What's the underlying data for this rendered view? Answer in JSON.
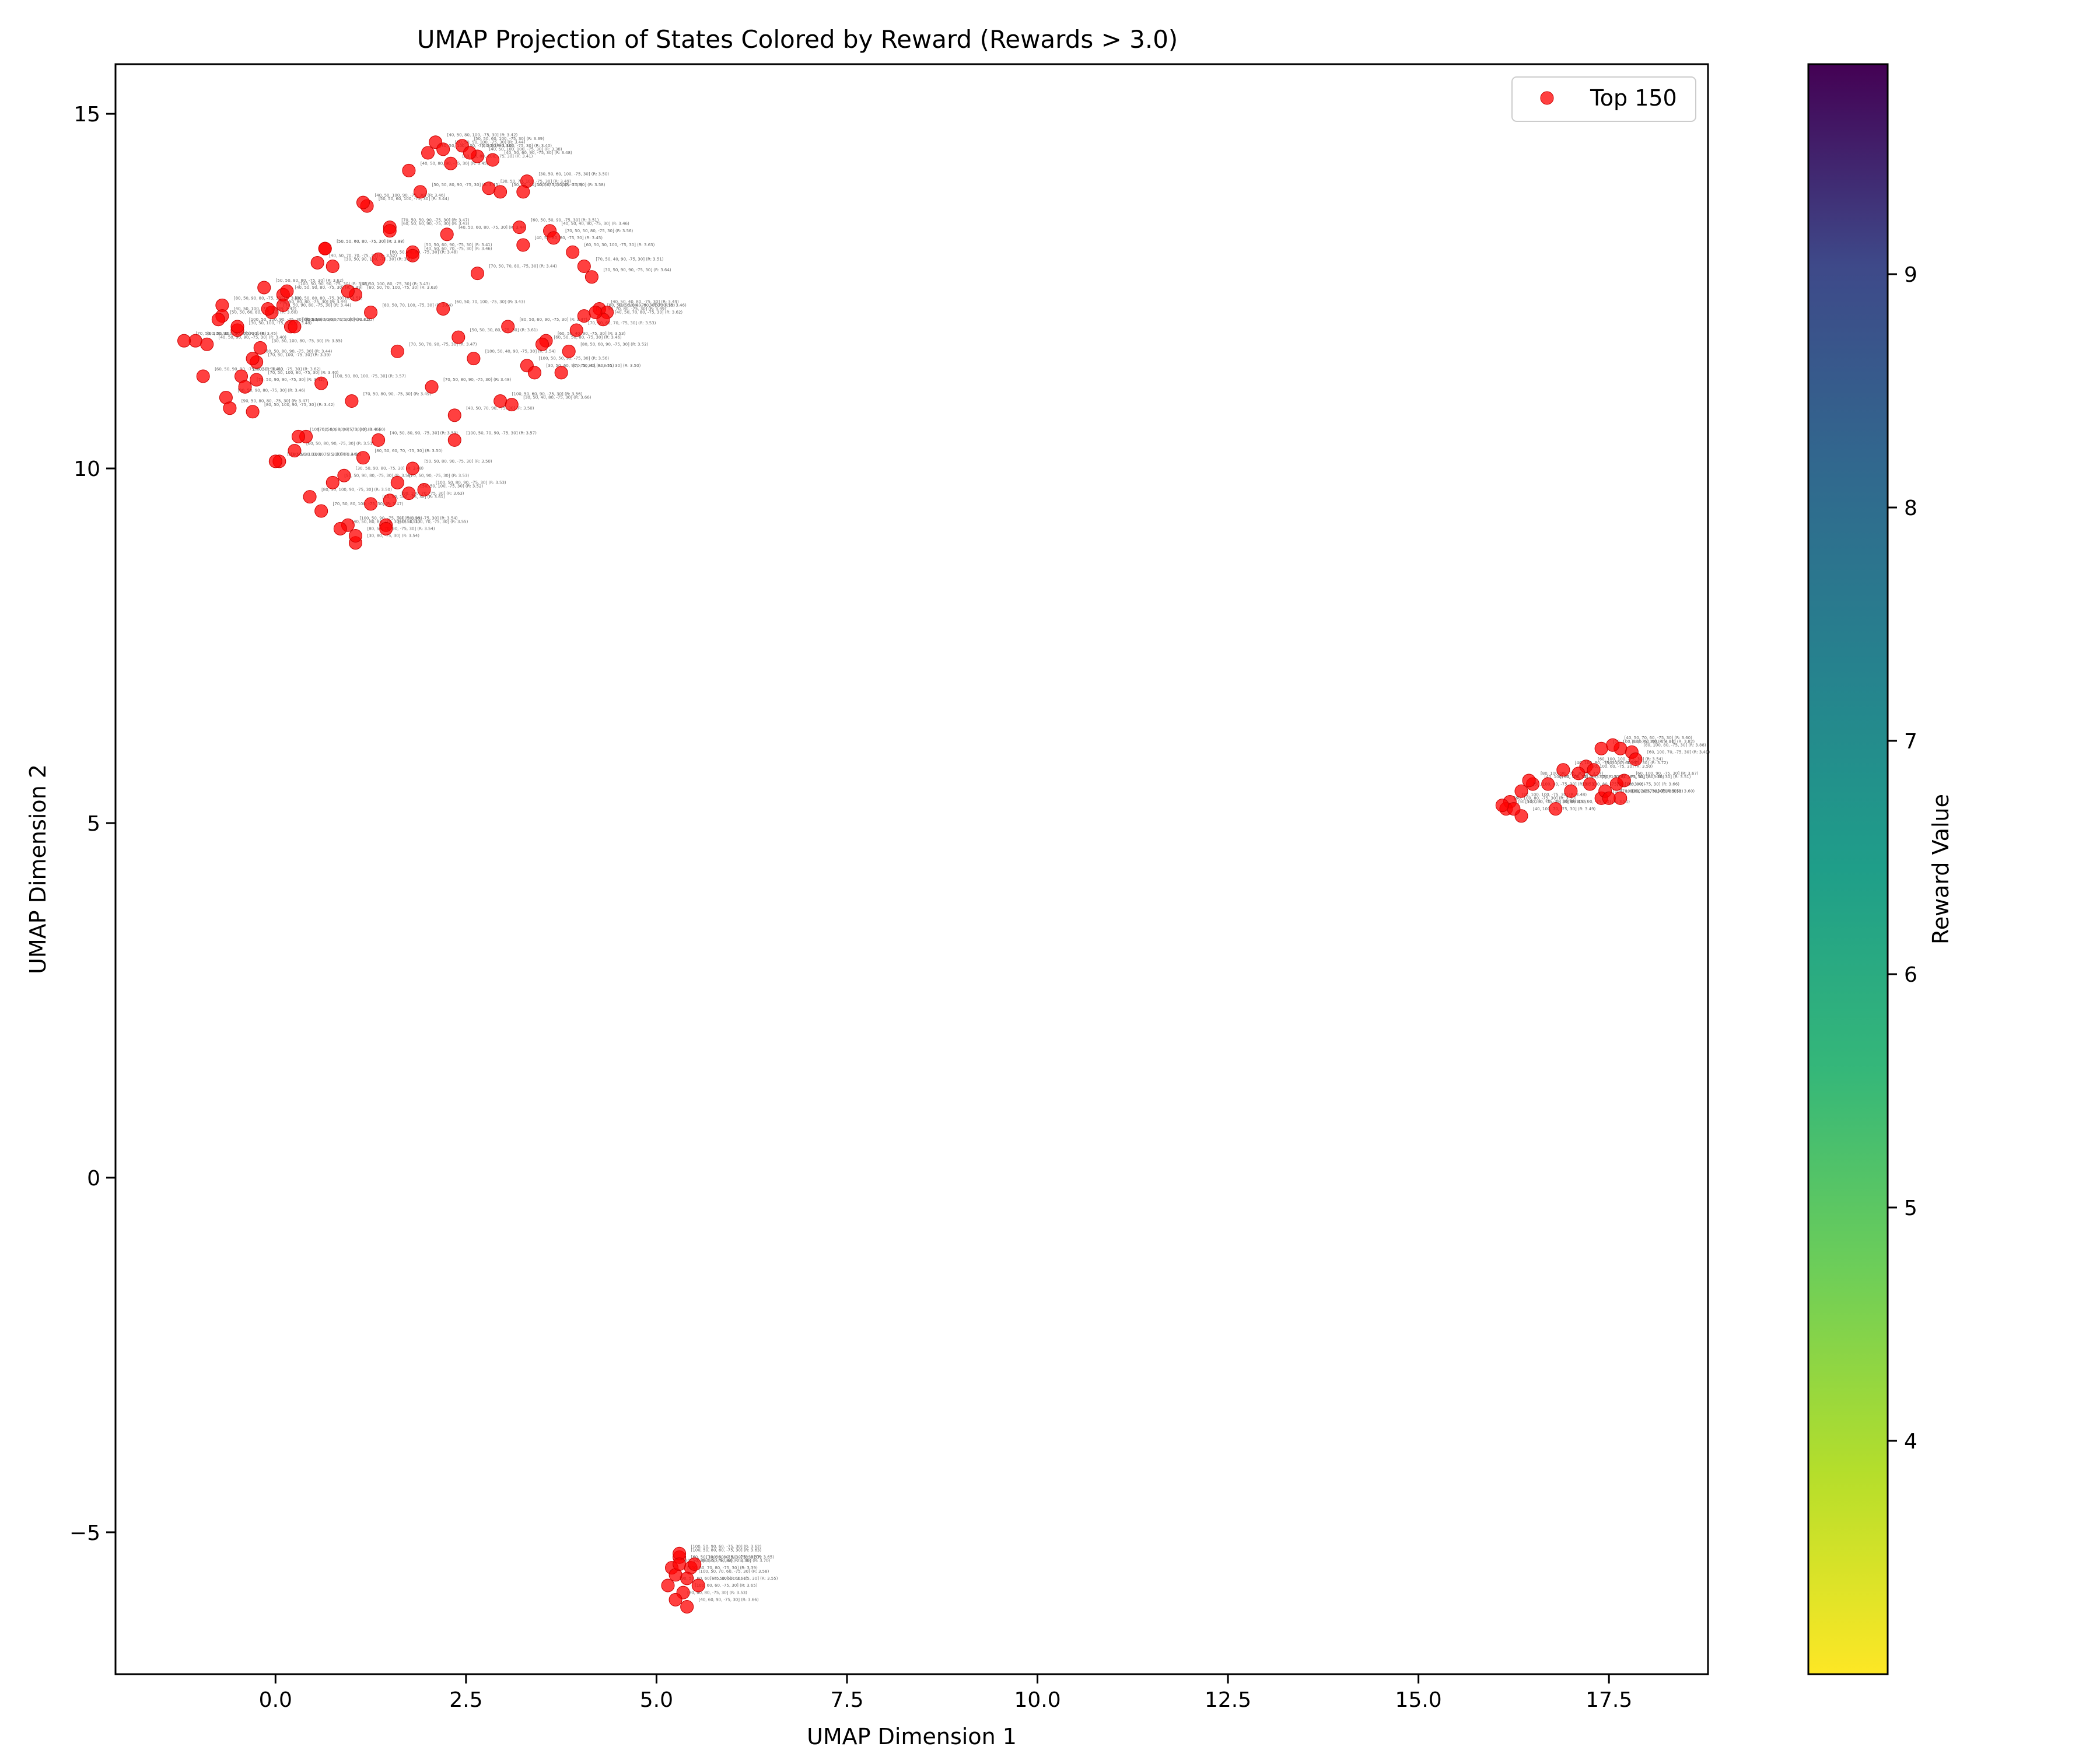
{
  "chart_data": {
    "type": "scatter",
    "title": "UMAP Projection of States Colored by Reward (Rewards > 3.0)",
    "xlabel": "UMAP Dimension 1",
    "ylabel": "UMAP Dimension 2",
    "xlim": [
      -2.1,
      18.8
    ],
    "ylim": [
      -7.0,
      15.7
    ],
    "xticks": [
      0.0,
      2.5,
      5.0,
      7.5,
      10.0,
      12.5,
      15.0,
      17.5
    ],
    "xtick_labels": [
      "0.0",
      "2.5",
      "5.0",
      "7.5",
      "10.0",
      "12.5",
      "15.0",
      "17.5"
    ],
    "yticks": [
      -5,
      0,
      5,
      10,
      15
    ],
    "ytick_labels": [
      "−5",
      "0",
      "5",
      "10",
      "15"
    ],
    "grid": false,
    "legend": {
      "position": "top-right",
      "entries": [
        "Top 150"
      ]
    },
    "colorbar": {
      "label": "Reward Value",
      "range": [
        3.0,
        9.9
      ],
      "ticks": [
        4,
        5,
        6,
        7,
        8,
        9
      ],
      "tick_labels": [
        "4",
        "5",
        "6",
        "7",
        "8",
        "9"
      ],
      "colormap": "viridis_r"
    },
    "colors": {
      "points": "#ff0000",
      "point_edge": "#cc0000",
      "annotation_text": "#777777"
    },
    "series": [
      {
        "name": "Top 150",
        "x": [
          2.1,
          2.45,
          2.85,
          1.75,
          2.3,
          2.95,
          3.3,
          1.9,
          2.65,
          1.2,
          1.5,
          3.6,
          2.25,
          3.25,
          0.65,
          1.8,
          0.75,
          3.9,
          4.15,
          4.05,
          2.65,
          -0.15,
          0.1,
          -0.7,
          1.05,
          -0.5,
          -1.05,
          4.25,
          4.35,
          4.3,
          4.05,
          3.05,
          2.2,
          1.6,
          3.55,
          3.85,
          2.6,
          -0.25,
          0.2,
          -0.7,
          -0.9,
          -1.2,
          3.3,
          2.05,
          3.4,
          1.0,
          2.95,
          -0.45,
          -0.65,
          2.35,
          0.4,
          1.35,
          2.35,
          0.25,
          0.05,
          1.8,
          0.9,
          1.6,
          0.75,
          1.95,
          0.45,
          1.25,
          1.75,
          0.6,
          0.95,
          1.45,
          1.05,
          5.3,
          5.45,
          5.2,
          5.55,
          5.35,
          5.25,
          5.4,
          5.3,
          17.4,
          17.65,
          17.8,
          17.2,
          16.9,
          17.6,
          17.7,
          17.1,
          16.5,
          16.35,
          16.2,
          16.8,
          17.4,
          17.65,
          16.15,
          16.35,
          2.55,
          2.0,
          2.2,
          3.25,
          3.2,
          3.65,
          2.8,
          -0.05,
          1.15,
          1.5,
          0.1,
          -0.5,
          0.65,
          -0.3,
          -0.95,
          -0.2,
          -0.4,
          0.95,
          1.25,
          1.8,
          1.35,
          0.0,
          0.6,
          0.55,
          0.25,
          0.3,
          1.15,
          1.45,
          3.95,
          2.4,
          3.5,
          4.2,
          3.1,
          3.75,
          -0.75,
          0.15,
          -0.1,
          -0.25,
          -0.6,
          -0.3,
          5.25,
          5.5,
          5.4,
          5.15,
          5.3,
          17.55,
          17.3,
          17.45,
          16.7,
          16.25,
          17.85,
          17.25,
          16.45,
          16.1,
          17.0,
          17.5,
          1.5,
          1.05,
          0.85
        ],
        "y": [
          14.6,
          14.55,
          14.35,
          14.2,
          14.3,
          13.9,
          14.05,
          13.9,
          14.4,
          13.7,
          13.4,
          13.35,
          13.3,
          13.15,
          13.1,
          13.05,
          12.85,
          13.05,
          12.7,
          12.85,
          12.75,
          12.55,
          12.45,
          12.3,
          12.45,
          11.95,
          11.8,
          12.25,
          12.2,
          12.1,
          12.15,
          12.0,
          12.25,
          11.65,
          11.8,
          11.65,
          11.55,
          11.5,
          12.0,
          12.15,
          11.75,
          11.8,
          11.45,
          11.15,
          11.35,
          10.95,
          10.95,
          11.3,
          11.0,
          10.75,
          10.45,
          10.4,
          10.4,
          10.25,
          10.1,
          10.0,
          9.9,
          9.8,
          9.8,
          9.7,
          9.6,
          9.5,
          9.65,
          9.4,
          9.2,
          9.2,
          8.95,
          -5.35,
          -5.5,
          -5.5,
          -5.75,
          -5.85,
          -5.95,
          -6.05,
          -5.3,
          6.05,
          6.05,
          6.0,
          5.8,
          5.75,
          5.55,
          5.6,
          5.7,
          5.55,
          5.45,
          5.3,
          5.2,
          5.35,
          5.35,
          5.2,
          5.1,
          14.45,
          14.45,
          14.5,
          13.9,
          13.4,
          13.25,
          13.95,
          12.2,
          13.75,
          13.35,
          12.3,
          12.0,
          13.1,
          11.55,
          11.3,
          11.7,
          11.15,
          12.5,
          12.2,
          13.0,
          12.95,
          10.1,
          11.2,
          12.9,
          12.0,
          10.45,
          10.15,
          9.15,
          11.95,
          11.85,
          11.75,
          12.2,
          10.9,
          11.35,
          12.1,
          12.5,
          12.25,
          11.25,
          10.85,
          10.8,
          -5.6,
          -5.45,
          -5.65,
          -5.75,
          -5.45,
          6.1,
          5.75,
          5.45,
          5.55,
          5.2,
          5.9,
          5.55,
          5.6,
          5.25,
          5.45,
          5.35,
          9.55,
          9.05,
          9.15
        ],
        "labels": [
          "[40, 50, 80, 100, -75, 30] (R: 3.42)",
          "[50, 50, 60, 100, -75, 30] (R: 3.39)",
          "[40, 50, 60, 90, -75, 30] (R: 3.48)",
          "[40, 50, 80, 90, -75, 30] (R: 3.45)",
          "[50, 50, 80, 100, -75, 30] (R: 3.41)",
          "[50, 50, 40, 100, -75, 30] (R: 3.53)",
          "[30, 50, 60, 100, -75, 30] (R: 3.50)",
          "[50, 50, 80, 90, -75, 30] (R: 3.45)",
          "[40, 50, 100, 100, -75, 30] (R: 3.38)",
          "[50, 50, 60, 100, -75, 30] (R: 3.44)",
          "[70, 50, 50, 90, -75, 30] (R: 3.47)",
          "[40, 50, 40, 90, -75, 30] (R: 3.46)",
          "[40, 50, 60, 80, -75, 30] (R: 3.44)",
          "[40, 50, 80, 80, -75, 30] (R: 3.45)",
          "[50, 50, 60, 80, -75, 30] (R: 3.38)",
          "[50, 50, 60, 90, -75, 30] (R: 3.41)",
          "[30, 50, 90, 100, -75, 30] (R: 3.52)",
          "[60, 50, 30, 100, -75, 30] (R: 3.63)",
          "[30, 50, 90, 90, -75, 30] (R: 3.64)",
          "[70, 50, 40, 90, -75, 30] (R: 3.51)",
          "[70, 50, 70, 80, -75, 30] (R: 3.44)",
          "[50, 50, 80, 80, -75, 30] (R: 3.62)",
          "[40, 50, 90, 80, -75, 30] (R: 3.49)",
          "[80, 50, 90, 80, -75, 30] (R: 3.48)",
          "[60, 50, 70, 100, -75, 30] (R: 3.63)",
          "[30, 50, 100, -75, 30] (R: 3.48)",
          "[60, 50, 100, 90, -75, 30] (R: 3.45)",
          "[40, 50, 40, 80, -75, 30] (R: 3.49)",
          "[80, 50, 40, 80, -75, 30] (R: 3.46)",
          "[40, 50, 70, 80, -75, 30] (R: 3.62)",
          "[100, 50, 70, 80, -75, 30] (R: 3.49)",
          "[80, 50, 60, 90, -75, 30] (R: 3.47)",
          "[60, 50, 70, 100, -75, 30] (R: 3.43)",
          "[70, 50, 70, 90, -75, 30] (R: 3.47)",
          "[60, 50, 40, 90, -75, 30] (R: 3.53)",
          "[80, 50, 60, 90, -75, 30] (R: 3.52)",
          "[100, 50, 40, 90, -75, 30] (R: 3.54)",
          "[70, 50, 100, -75, 30] (R: 3.39)",
          "[60, 50, 80, 90, -75, 30] (R: 3.41)",
          "[40, 50, 100, -75, 30] (R: 3.42)",
          "[40, 50, 90, 90, -75, 30] (R: 3.40)",
          "[70, 50, 100, 90, -75, 30] (R: 3.46)",
          "[100, 50, 50, 90, -75, 30] (R: 3.56)",
          "[70, 50, 80, 90, -75, 30] (R: 3.48)",
          "[30, 50, 60, 90, -75, 30] (R: 3.51)",
          "[70, 50, 80, 90, -75, 30] (R: 3.49)",
          "[100, 50, 60, 90, -75, 30] (R: 3.56)",
          "[60, 50, 90, 80, -75, 30] (R: 3.62)",
          "[80, 50, 90, 80, -75, 30] (R: 3.46)",
          "[40, 50, 70, 90, -75, 30] (R: 3.50)",
          "[70, 50, 60, 90, -75, 30] (R: 3.60)",
          "[40, 50, 80, 90, -75, 30] (R: 3.53)",
          "[100, 50, 70, 90, -75, 30] (R: 3.57)",
          "[60, 50, 80, 90, -75, 30] (R: 3.51)",
          "[80, 50, 100, 80, -75, 30] (R: 3.56)",
          "[50, 50, 80, 90, -75, 30] (R: 3.50)",
          "[30, 50, 90, 80, -75, 30] (R: 3.48)",
          "[70, 50, 90, -75, 30] (R: 3.53)",
          "[50, 50, 90, 80, -75, 30] (R: 3.56)",
          "[100, 50, 80, 90, -75, 30] (R: 3.53)",
          "[80, 50, 100, 90, -75, 30] (R: 3.50)",
          "[60, 50, 100, -75, 30] (R: 3.61)",
          "[50, 50, 100, -75, 30] (R: 3.52)",
          "[70, 50, 80, 100, -75, 30] (R: 3.47)",
          "[100, 50, 90, -75, 30] (R: 3.39)",
          "[40, 50, 90, -75, 30] (R: 3.54)",
          "[30, 80, -75, 30] (R: 3.54)",
          "[100, 50, 80, 60, -75, 30] (R: 3.63)",
          "[60, 50, 90, 60, -75, 30] (R: 3.70)",
          "[80, 50, 80, 60, -75, 30] (R: 3.55)",
          "[60, 50, 60, 60, -75, 30] (R: 3.55)",
          "[100, 60, 60, -75, 30] (R: 3.65)",
          "[80, 60, 80, -75, 30] (R: 3.53)",
          "[40, 60, 90, -75, 30] (R: 3.66)",
          "[100, 50, 90, 60, -75, 30] (R: 3.62)",
          "[70, 100, 60, -75, 30] (R: 4.01)",
          "[100, 60, 90, -75, 30] (R: 3.82)",
          "[80, 100, 80, -75, 30] (R: 3.88)",
          "[60, 100, 100, -75, 30] (R: 3.54)",
          "[40, 100, 80, -75, 30] (R: 3.59)",
          "[80, 50, 100, -75, 30] (R: 3.51)",
          "[60, 100, 90, -75, 30] (R: 3.67)",
          "[30, 100, 60, -75, 30] (R: 3.50)",
          "[40, 100, 90, -75, 30] (R: 3.52)",
          "[50, 100, 80, -75, 30] (R: 3.53)",
          "[30, 100, 100, -75, 30] (R: 3.48)",
          "[70, 100, 90, -75, 30] (R: 3.51)",
          "[100, 100, 80, -75, 30] (R: 4.50)",
          "[80, 100, 70, -75, 30] (R: 3.60)",
          "[50, 100, 90, -75, 30] (R: 3.47)",
          "[40, 100, 70, -75, 30] (R: 3.49)",
          "[40, 50, 90, 100, -75, 30] (R: 3.40)",
          "[30, 50, 100, 100, -75, 30] (R: 3.38)",
          "[60, 50, 90, 100, -75, 30] (R: 3.44)",
          "[50, 50, 70, 100, -75, 30] (R: 3.58)",
          "[60, 50, 50, 90, -75, 30] (R: 3.51)",
          "[70, 50, 50, 80, -75, 30] (R: 3.56)",
          "[30, 50, 70, 100, -75, 30] (R: 3.49)",
          "[70, 50, 90, 80, -75, 30] (R: 3.44)",
          "[40, 50, 100, 90, -75, 30] (R: 3.46)",
          "[60, 50, 60, 90, -75, 30] (R: 3.43)",
          "[30, 50, 80, 80, -75, 30] (R: 3.51)",
          "[100, 50, 100, 90, -75, 30] (R: 3.48)",
          "[50, 50, 70, 80, -75, 30] (R: 3.47)",
          "[80, 50, 80, 90, -75, 30] (R: 3.44)",
          "[60, 50, 90, 90, -75, 30] (R: 3.41)",
          "[30, 50, 100, 80, -75, 30] (R: 3.55)",
          "[70, 50, 90, 90, -75, 30] (R: 3.42)",
          "[50, 50, 100, 80, -75, 30] (R: 3.43)",
          "[80, 50, 70, 100, -75, 30] (R: 3.64)",
          "[40, 50, 60, 70, -75, 30] (R: 3.46)",
          "[60, 50, 40, 80, -75, 30] (R: 3.48)",
          "[50, 50, 90, 100, -75, 30] (R: 3.44)",
          "[100, 50, 80, 100, -75, 30] (R: 3.57)",
          "[40, 50, 70, 70, -75, 30] (R: 3.52)",
          "[30, 50, 60, 80, -75, 30] (R: 3.55)",
          "[100, 50, 60, 80, -75, 30] (R: 3.46)",
          "[80, 50, 60, 70, -75, 30] (R: 3.50)",
          "[60, 50, 100, 70, -75, 30] (R: 3.55)",
          "[70, 50, 60, 70, -75, 30] (R: 3.53)",
          "[50, 50, 30, 80, -75, 30] (R: 3.61)",
          "[60, 50, 50, 80, -75, 30] (R: 3.46)",
          "[80, 50, 50, 80, -75, 30] (R: 3.55)",
          "[30, 50, 40, 80, -75, 30] (R: 3.66)",
          "[70, 50, 40, 80, -75, 30] (R: 3.50)",
          "[50, 50, 60, 80, -75, 30] (R: 3.60)",
          "[100, 50, 90, 90, -75, 30] (R: 3.45)",
          "[60, 50, 80, 80, -75, 30] (R: 3.44)",
          "[70, 50, 100, 80, -75, 30] (R: 3.40)",
          "[90, 50, 80, 80, -75, 30] (R: 3.47)",
          "[80, 50, 100, 90, -75, 30] (R: 3.42)",
          "[100, 50, 70, 80, -75, 30] (R: 3.39)",
          "[70, 50, 80, 60, -75, 30] (R: 3.65)",
          "[100, 50, 70, 60, -75, 30] (R: 3.58)",
          "[90, 50, 60, 60, -75, 30] (R: 3.61)",
          "[60, 50, 100, 60, -75, 30] (R: 3.57)",
          "[40, 50, 70, 60, -75, 30] (R: 3.60)",
          "[90, 100, 60, -75, 30] (R: 3.72)",
          "[70, 100, 80, -75, 30] (R: 3.66)",
          "[100, 100, 90, -75, 30] (R: 3.58)",
          "[50, 100, 70, -75, 30] (R: 3.55)",
          "[60, 100, 70, -75, 30] (R: 3.49)",
          "[90, 100, 80, -75, 30] (R: 3.80)",
          "[80, 100, 90, -75, 30] (R: 3.57)",
          "[60, 100, 80, -75, 30] (R: 3.50)",
          "[30, 100, 80, -75, 30] (R: 3.46)",
          "[70, 100, 70, -75, 30] (R: 3.52)",
          "[90, 100, 70, -75, 30] (R: 3.63)",
          "[80, 50, 70, 90, -75, 30] (R: 3.54)",
          "[40, 50, 80, 80, -75, 30] (R: 3.51)",
          "[90, 50, 70, 90, -75, 30] (R: 3.49)"
        ]
      }
    ]
  }
}
